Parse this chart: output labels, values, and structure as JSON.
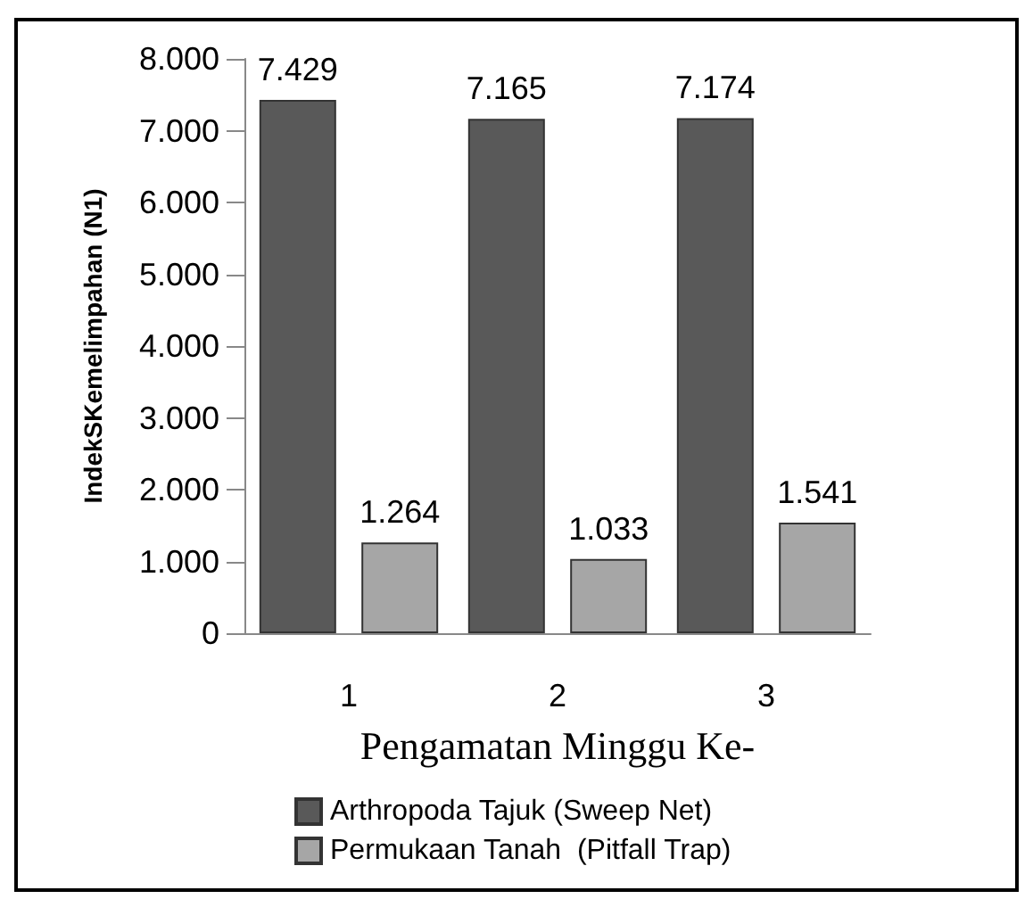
{
  "chart_data": {
    "type": "bar",
    "xlabel": "Pengamatan Minggu Ke-",
    "ylabel": "IndekSKemelimpahan (N1)",
    "categories": [
      "1",
      "2",
      "3"
    ],
    "series": [
      {
        "name": "Arthropoda Tajuk (Sweep Net)",
        "color": "#595959",
        "values": [
          7429,
          7165,
          7174
        ],
        "value_labels": [
          "7.429",
          "7.165",
          "7.174"
        ]
      },
      {
        "name": "Permukaan Tanah  (Pitfall Trap)",
        "color": "#a6a6a6",
        "values": [
          1264,
          1033,
          1541
        ],
        "value_labels": [
          "1.264",
          "1.033",
          "1.541"
        ]
      }
    ],
    "ylim": [
      0,
      8000
    ],
    "yticks": [
      0,
      {
        "value": 1000,
        "label": "1.000"
      },
      {
        "value": 2000,
        "label": "2.000"
      },
      {
        "value": 3000,
        "label": "3.000"
      },
      {
        "value": 4000,
        "label": "4.000"
      },
      {
        "value": 5000,
        "label": "5.000"
      },
      {
        "value": 6000,
        "label": "6.000"
      },
      {
        "value": 7000,
        "label": "7.000"
      },
      {
        "value": 8000,
        "label": "8.000"
      }
    ],
    "grid": false,
    "legend": "bottom"
  }
}
